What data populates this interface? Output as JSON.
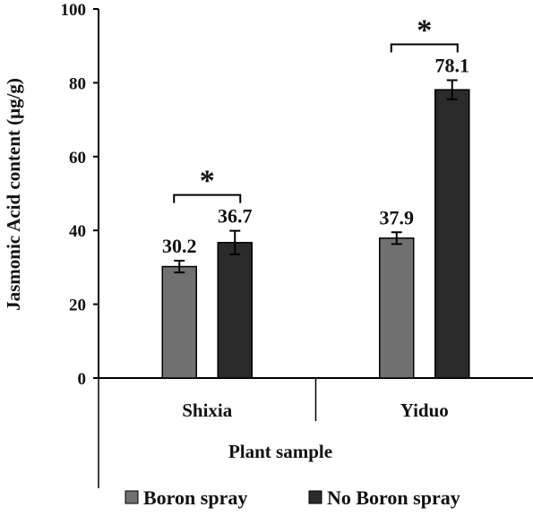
{
  "chart_data": {
    "type": "bar",
    "title": "",
    "xlabel": "Plant sample",
    "ylabel": "Jasmonic Acid content (μg/g)",
    "ylim": [
      0,
      100
    ],
    "yticks": [
      "0",
      "20",
      "40",
      "60",
      "80",
      "100"
    ],
    "categories": [
      "Shixia",
      "Yiduo"
    ],
    "series": [
      {
        "name": "Boron spray",
        "color": "#707070",
        "values": [
          30.2,
          37.9
        ],
        "errors": [
          1.6,
          1.6
        ],
        "labels": [
          "30.2",
          "37.9"
        ]
      },
      {
        "name": "No Boron spray",
        "color": "#2b2b2b",
        "values": [
          36.7,
          78.1
        ],
        "errors": [
          3.2,
          2.6
        ],
        "labels": [
          "36.7",
          "78.1"
        ]
      }
    ],
    "significance": [
      {
        "category": "Shixia",
        "label": "*"
      },
      {
        "category": "Yiduo",
        "label": "*"
      }
    ],
    "grid": false,
    "legend": "bottom"
  }
}
